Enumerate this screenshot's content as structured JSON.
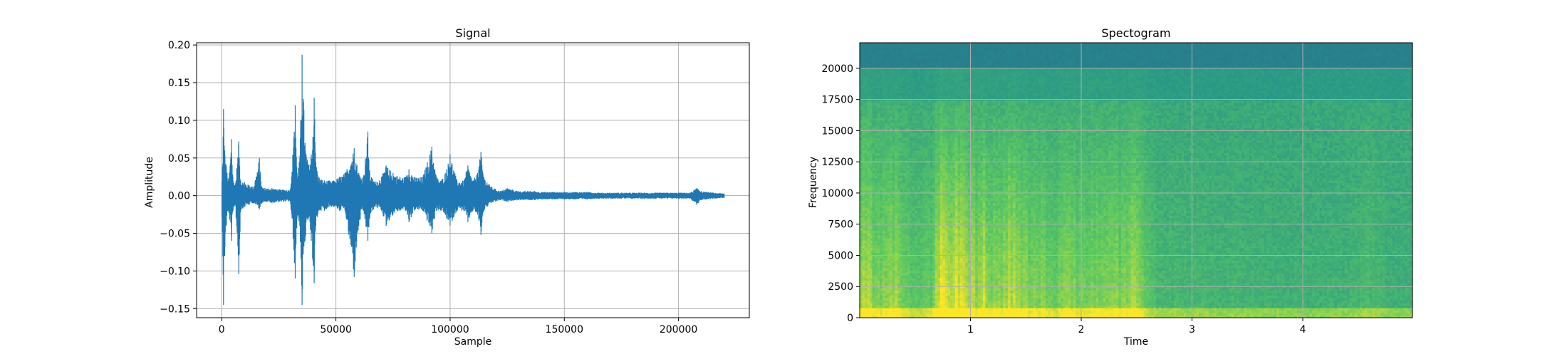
{
  "chart_data": [
    {
      "type": "line",
      "title": "Signal",
      "xlabel": "Sample",
      "ylabel": "Amplitude",
      "xlim": [
        -11000,
        231000
      ],
      "ylim": [
        -0.162,
        0.203
      ],
      "xticks": [
        0,
        50000,
        100000,
        150000,
        200000
      ],
      "xtick_labels": [
        "0",
        "50000",
        "100000",
        "150000",
        "200000"
      ],
      "yticks": [
        -0.15,
        -0.1,
        -0.05,
        0.0,
        0.05,
        0.1,
        0.15,
        0.2
      ],
      "ytick_labels": [
        "−0.15",
        "−0.10",
        "−0.05",
        "0.00",
        "0.05",
        "0.10",
        "0.15",
        "0.20"
      ],
      "grid": true,
      "color": "#1f77b4",
      "series": [
        {
          "x": [
            0,
            800,
            1300,
            2000,
            3000,
            4300,
            5000,
            6000,
            7500,
            8300,
            10000,
            12000,
            14000,
            16500,
            17500,
            19000,
            22000,
            26000,
            30000,
            31600,
            32200,
            33000,
            34200,
            35200,
            36500,
            38000,
            39200,
            40500,
            41200,
            42500,
            45000,
            47000,
            49000,
            51500,
            54000,
            58000,
            60000,
            62000,
            64000,
            64800,
            67000,
            70000,
            72000,
            75000,
            78000,
            80500,
            82000,
            84500,
            88000,
            92000,
            94000,
            96000,
            98500,
            100000,
            103000,
            106000,
            107800,
            110000,
            112000,
            113500,
            114800,
            118000,
            122000,
            125000,
            130000,
            135000,
            137000,
            140000,
            145000,
            150000,
            155000,
            160000,
            165000,
            170000,
            175000,
            180000,
            185000,
            190000,
            195000,
            200000,
            205000,
            208000,
            210000,
            215000,
            220000
          ],
          "min": [
            0.0,
            -0.145,
            -0.08,
            -0.04,
            -0.02,
            -0.06,
            -0.02,
            -0.012,
            -0.104,
            -0.02,
            -0.015,
            -0.012,
            -0.01,
            -0.018,
            -0.01,
            -0.008,
            -0.01,
            -0.008,
            -0.008,
            -0.072,
            -0.11,
            -0.03,
            -0.04,
            -0.145,
            -0.06,
            -0.03,
            -0.06,
            -0.116,
            -0.04,
            -0.02,
            -0.02,
            -0.015,
            -0.015,
            -0.02,
            -0.02,
            -0.108,
            -0.04,
            -0.02,
            -0.06,
            -0.03,
            -0.015,
            -0.02,
            -0.04,
            -0.025,
            -0.02,
            -0.02,
            -0.035,
            -0.02,
            -0.02,
            -0.05,
            -0.02,
            -0.02,
            -0.03,
            -0.04,
            -0.02,
            -0.02,
            -0.035,
            -0.02,
            -0.025,
            -0.052,
            -0.02,
            -0.01,
            -0.006,
            -0.008,
            -0.006,
            -0.006,
            -0.006,
            -0.005,
            -0.005,
            -0.005,
            -0.005,
            -0.005,
            -0.004,
            -0.004,
            -0.004,
            -0.004,
            -0.004,
            -0.004,
            -0.004,
            -0.004,
            -0.004,
            -0.012,
            -0.006,
            -0.004,
            -0.003
          ],
          "max": [
            0.0,
            0.115,
            0.06,
            0.04,
            0.02,
            0.075,
            0.02,
            0.015,
            0.072,
            0.02,
            0.018,
            0.014,
            0.012,
            0.05,
            0.012,
            0.01,
            0.01,
            0.008,
            0.008,
            0.078,
            0.12,
            0.03,
            0.05,
            0.187,
            0.07,
            0.04,
            0.055,
            0.13,
            0.045,
            0.025,
            0.02,
            0.02,
            0.02,
            0.025,
            0.03,
            0.063,
            0.03,
            0.025,
            0.085,
            0.03,
            0.018,
            0.025,
            0.04,
            0.03,
            0.025,
            0.025,
            0.035,
            0.025,
            0.025,
            0.065,
            0.025,
            0.02,
            0.035,
            0.055,
            0.02,
            0.02,
            0.04,
            0.02,
            0.03,
            0.058,
            0.025,
            0.012,
            0.006,
            0.01,
            0.006,
            0.006,
            0.006,
            0.005,
            0.005,
            0.005,
            0.005,
            0.005,
            0.004,
            0.004,
            0.004,
            0.004,
            0.004,
            0.004,
            0.004,
            0.004,
            0.004,
            0.01,
            0.006,
            0.004,
            0.003
          ]
        }
      ]
    },
    {
      "type": "heatmap",
      "title": "Spectogram",
      "xlabel": "Time",
      "ylabel": "Frequency",
      "xlim": [
        0.0,
        4.99
      ],
      "ylim": [
        0,
        22050
      ],
      "xticks": [
        1,
        2,
        3,
        4
      ],
      "xtick_labels": [
        "1",
        "2",
        "3",
        "4"
      ],
      "yticks": [
        0,
        2500,
        5000,
        7500,
        10000,
        12500,
        15000,
        17500,
        20000
      ],
      "ytick_labels": [
        "0",
        "2500",
        "5000",
        "7500",
        "10000",
        "12500",
        "15000",
        "17500",
        "20000"
      ],
      "grid": true,
      "colormap": "viridis",
      "band_cutoff_hz": 20000,
      "time_energy": {
        "t": [
          0.0,
          0.05,
          0.1,
          0.2,
          0.3,
          0.38,
          0.45,
          0.55,
          0.65,
          0.72,
          0.75,
          0.8,
          0.85,
          0.9,
          0.95,
          1.0,
          1.05,
          1.12,
          1.2,
          1.3,
          1.35,
          1.45,
          1.55,
          1.65,
          1.75,
          1.85,
          1.95,
          2.05,
          2.15,
          2.25,
          2.35,
          2.45,
          2.55,
          2.62,
          2.7,
          2.8,
          3.0,
          3.2,
          3.5,
          3.8,
          4.1,
          4.4,
          4.6,
          4.8,
          4.99
        ],
        "energy": [
          0.55,
          0.8,
          0.6,
          0.55,
          0.7,
          0.5,
          0.4,
          0.35,
          0.45,
          0.9,
          0.95,
          0.9,
          0.85,
          0.9,
          0.7,
          0.8,
          0.6,
          0.75,
          0.55,
          0.6,
          0.8,
          0.65,
          0.5,
          0.55,
          0.45,
          0.6,
          0.5,
          0.45,
          0.5,
          0.6,
          0.55,
          0.65,
          0.5,
          0.3,
          0.2,
          0.18,
          0.18,
          0.15,
          0.15,
          0.12,
          0.12,
          0.12,
          0.25,
          0.1,
          0.1
        ]
      }
    }
  ]
}
